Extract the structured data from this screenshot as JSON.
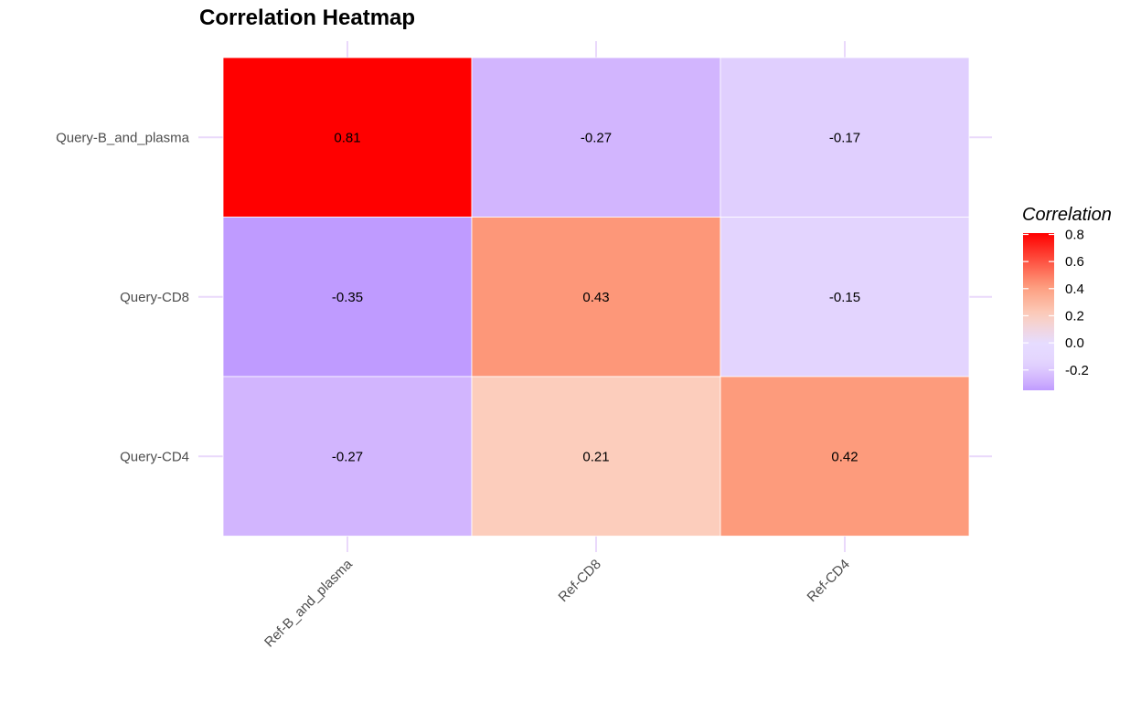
{
  "chart_data": {
    "type": "heatmap",
    "title": "Correlation Heatmap",
    "xlabel": "",
    "ylabel": "",
    "x_categories": [
      "Ref-B_and_plasma",
      "Ref-CD8",
      "Ref-CD4"
    ],
    "y_categories": [
      "Query-B_and_plasma",
      "Query-CD8",
      "Query-CD4"
    ],
    "values": [
      [
        0.81,
        -0.27,
        -0.17
      ],
      [
        -0.35,
        0.43,
        -0.15
      ],
      [
        -0.27,
        0.21,
        0.42
      ]
    ],
    "value_labels": [
      [
        "0.81",
        "-0.27",
        "-0.17"
      ],
      [
        "-0.35",
        "0.43",
        "-0.15"
      ],
      [
        "-0.27",
        "0.21",
        "0.42"
      ]
    ],
    "color_scale": {
      "low_color": "#bf9bff",
      "mid_color": "#e6dcff",
      "high_color": "#ff0000",
      "midpoint": 0,
      "range": [
        -0.35,
        0.81
      ]
    },
    "legend": {
      "title": "Correlation",
      "ticks": [
        "0.8",
        "0.6",
        "0.4",
        "0.2",
        "0.0",
        "-0.2"
      ],
      "tick_values": [
        0.8,
        0.6,
        0.4,
        0.2,
        0.0,
        -0.2
      ],
      "placement": "right"
    },
    "grid": true,
    "grid_color": "#ead9fb"
  }
}
